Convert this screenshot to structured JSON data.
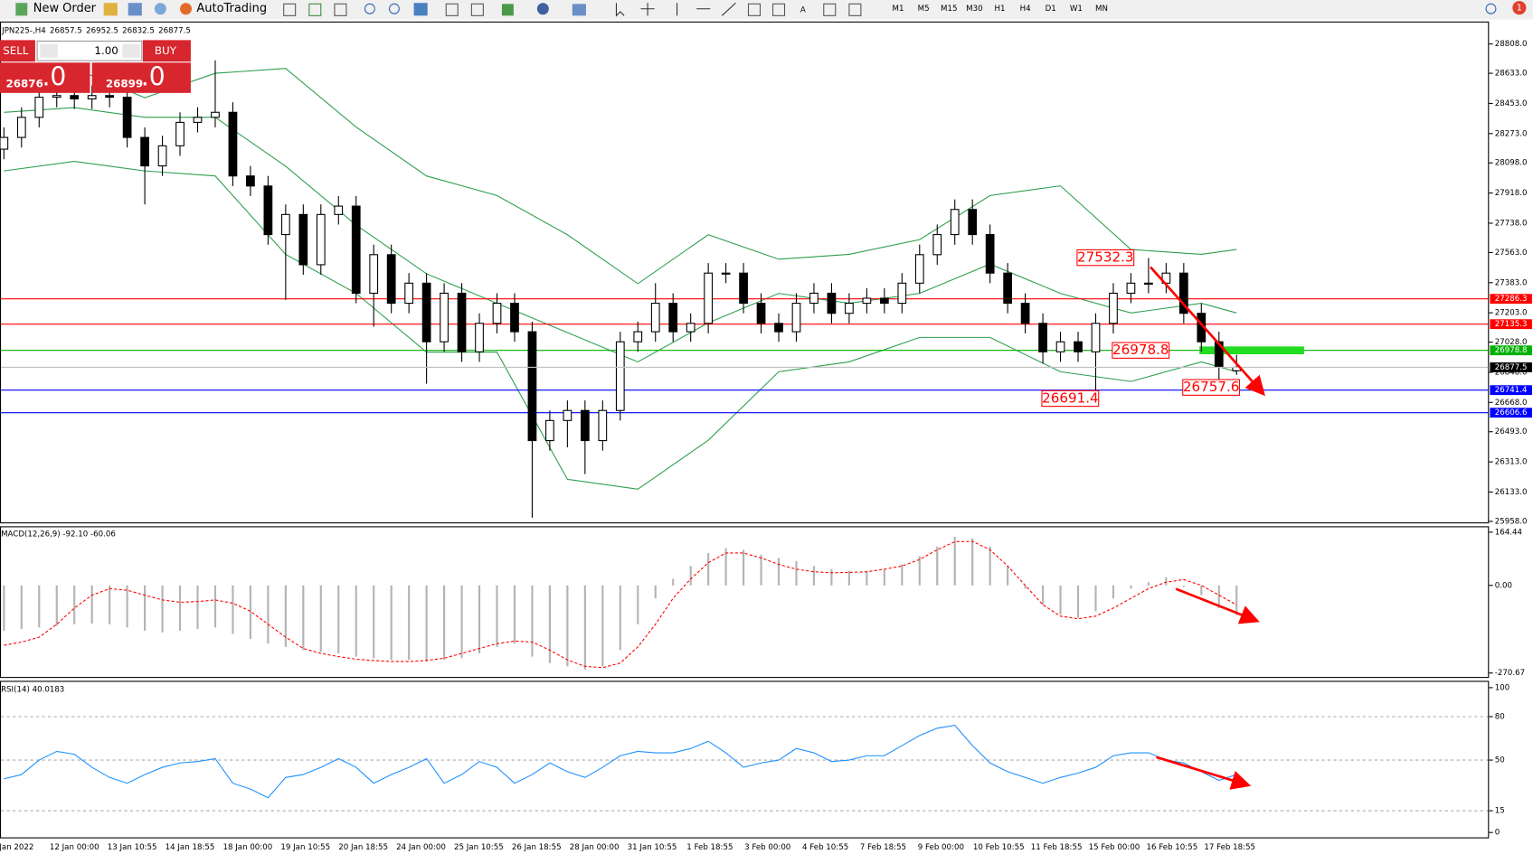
{
  "toolbar": {
    "new_order": "New Order",
    "autotrading": "AutoTrading",
    "timeframes": [
      "M1",
      "M5",
      "M15",
      "M30",
      "H1",
      "H4",
      "D1",
      "W1",
      "MN"
    ],
    "badge": "1"
  },
  "trade_panel": {
    "sell": "SELL",
    "buy": "BUY",
    "lots": "1.00",
    "sell_price": "26876",
    "sell_big": ".0",
    "buy_price": "26899",
    "buy_big": ".0"
  },
  "time_axis": [
    "Jan 2022",
    "12 Jan 00:00",
    "13 Jan 10:55",
    "14 Jan 18:55",
    "18 Jan 00:00",
    "19 Jan 10:55",
    "20 Jan 18:55",
    "24 Jan 00:00",
    "25 Jan 10:55",
    "26 Jan 18:55",
    "28 Jan 00:00",
    "31 Jan 10:55",
    "1 Feb 18:55",
    "3 Feb 00:00",
    "4 Feb 10:55",
    "7 Feb 18:55",
    "9 Feb 00:00",
    "10 Feb 10:55",
    "11 Feb 18:55",
    "15 Feb 00:00",
    "16 Feb 10:55",
    "17 Feb 18:55"
  ],
  "chart_data": [
    {
      "type": "candlestick",
      "symbol": "JPN225-,H4",
      "open": [
        28180,
        28250,
        28370,
        28490,
        28500,
        28480,
        28500,
        28490,
        28250,
        28080,
        28200,
        28340,
        28370,
        28400,
        28020,
        27960,
        27670,
        27790,
        27490,
        27790,
        27840,
        27320,
        27550,
        27260,
        27380,
        27030,
        27320,
        26970,
        27140,
        27260,
        27090,
        26440,
        26560,
        26620,
        26440,
        26620,
        27030,
        27090,
        27260,
        27090,
        27140,
        27440,
        27440,
        27260,
        27140,
        27090,
        27260,
        27320,
        27200,
        27260,
        27290,
        27260,
        27380,
        27550,
        27670,
        27820,
        27670,
        27440,
        27260,
        27140,
        26970,
        27030,
        26970,
        27140,
        27320,
        27380,
        27380,
        27440,
        27200,
        27030,
        26857.5
      ],
      "high": [
        28310,
        28430,
        28550,
        28560,
        28560,
        28560,
        28560,
        28550,
        28310,
        28260,
        28400,
        28430,
        28710,
        28460,
        28080,
        28020,
        27850,
        27850,
        27850,
        27900,
        27900,
        27610,
        27610,
        27440,
        27440,
        27380,
        27380,
        27200,
        27320,
        27320,
        27150,
        26620,
        26680,
        26680,
        26680,
        27090,
        27150,
        27380,
        27320,
        27200,
        27500,
        27500,
        27500,
        27320,
        27200,
        27320,
        27380,
        27380,
        27320,
        27350,
        27350,
        27440,
        27610,
        27730,
        27880,
        27880,
        27730,
        27500,
        27320,
        27200,
        27090,
        27090,
        27200,
        27380,
        27440,
        27530,
        27500,
        27500,
        27260,
        27090,
        26952.5
      ],
      "low": [
        28120,
        28190,
        28310,
        28430,
        28420,
        28420,
        28430,
        28190,
        27850,
        28020,
        28140,
        28280,
        28310,
        27960,
        27900,
        27610,
        27280,
        27430,
        27430,
        27730,
        27260,
        27120,
        27200,
        27200,
        26780,
        26970,
        26910,
        26910,
        27080,
        27030,
        25980,
        26380,
        26400,
        26240,
        26380,
        26560,
        26970,
        27030,
        27030,
        27030,
        27080,
        27380,
        27200,
        27080,
        27030,
        27030,
        27200,
        27140,
        27140,
        27200,
        27200,
        27200,
        27320,
        27490,
        27610,
        27610,
        27380,
        27200,
        27080,
        26900,
        26910,
        26910,
        26690,
        27080,
        27260,
        27320,
        27320,
        27140,
        26970,
        26760,
        26832.5
      ],
      "close": [
        28250,
        28370,
        28490,
        28500,
        28480,
        28500,
        28490,
        28250,
        28080,
        28200,
        28340,
        28370,
        28400,
        28020,
        27960,
        27670,
        27790,
        27490,
        27790,
        27840,
        27320,
        27550,
        27260,
        27380,
        27030,
        27320,
        26970,
        27140,
        27260,
        27090,
        26440,
        26560,
        26620,
        26440,
        26620,
        27030,
        27090,
        27260,
        27090,
        27140,
        27440,
        27440,
        27260,
        27140,
        27090,
        27260,
        27320,
        27200,
        27260,
        27290,
        27260,
        27380,
        27550,
        27670,
        27820,
        27670,
        27440,
        27260,
        27140,
        26970,
        27030,
        26970,
        27140,
        27320,
        27380,
        27380,
        27440,
        27200,
        27030,
        26880,
        26877.5
      ],
      "ylim": [
        25946,
        28942
      ],
      "yticks": [
        {
          "value": 28808,
          "label": "28808.0"
        },
        {
          "value": 28633,
          "label": "28633.0"
        },
        {
          "value": 28453,
          "label": "28453.0"
        },
        {
          "value": 28273,
          "label": "28273.0"
        },
        {
          "value": 28098,
          "label": "28098.0"
        },
        {
          "value": 27918,
          "label": "27918.0"
        },
        {
          "value": 27738,
          "label": "27738.0"
        },
        {
          "value": 27563,
          "label": "27563.0"
        },
        {
          "value": 27383,
          "label": "27383.0"
        },
        {
          "value": 27203,
          "label": "27203.0"
        },
        {
          "value": 27028,
          "label": "27028.0"
        },
        {
          "value": 26848,
          "label": "26848.0"
        },
        {
          "value": 26668,
          "label": "26668.0"
        },
        {
          "value": 26493,
          "label": "26493.0"
        },
        {
          "value": 26313,
          "label": "26313.0"
        },
        {
          "value": 26133,
          "label": "26133.0"
        },
        {
          "value": 25958,
          "label": "25958.0"
        }
      ],
      "bands": {
        "color": "#2e9e4f",
        "x": [
          0,
          4,
          8,
          12,
          16,
          20,
          24,
          28,
          32,
          36,
          40,
          44,
          48,
          52,
          56,
          60,
          64,
          68,
          70
        ],
        "upper": [
          28633,
          28662,
          28487,
          28633,
          28662,
          28312,
          28020,
          27903,
          27669,
          27377,
          27669,
          27523,
          27552,
          27640,
          27903,
          27961,
          27581,
          27552,
          27581
        ],
        "middle": [
          28400,
          28428,
          28370,
          28370,
          28078,
          27727,
          27436,
          27260,
          27085,
          26910,
          27143,
          27319,
          27260,
          27319,
          27494,
          27319,
          27202,
          27260,
          27202
        ],
        "lower": [
          28050,
          28107,
          28050,
          28020,
          27552,
          27319,
          26968,
          26968,
          26209,
          26150,
          26442,
          26851,
          26910,
          27056,
          27056,
          26851,
          26793,
          26910,
          26851
        ]
      },
      "levels": [
        {
          "value": 27286.3,
          "color": "#ff0000"
        },
        {
          "value": 27135.3,
          "color": "#ff0000"
        },
        {
          "value": 26978.8,
          "color": "#00b000"
        },
        {
          "value": 26741.4,
          "color": "#0000ff"
        },
        {
          "value": 26606.6,
          "color": "#0000ff"
        }
      ],
      "annotations": [
        {
          "x": 61,
          "value": 27532.3
        },
        {
          "x": 63,
          "value": 26978.8
        },
        {
          "x": 59,
          "value": 26691.4
        },
        {
          "x": 67,
          "value": 26757.6
        }
      ]
    },
    {
      "type": "macd",
      "title": "MACD(12,26,9) -92.10 -60.06",
      "histogram": [
        -140,
        -135,
        -130,
        -125,
        -120,
        -118,
        -120,
        -130,
        -140,
        -145,
        -140,
        -135,
        -130,
        -150,
        -165,
        -180,
        -190,
        -200,
        -205,
        -210,
        -220,
        -225,
        -230,
        -230,
        -235,
        -230,
        -225,
        -210,
        -190,
        -180,
        -220,
        -240,
        -250,
        -260,
        -250,
        -200,
        -120,
        -40,
        20,
        60,
        100,
        115,
        110,
        95,
        85,
        75,
        60,
        50,
        45,
        45,
        50,
        65,
        90,
        120,
        150,
        145,
        120,
        60,
        -10,
        -60,
        -90,
        -100,
        -80,
        -40,
        -10,
        10,
        25,
        -5,
        -30,
        -70,
        -92.1
      ],
      "signal": [
        -185,
        -175,
        -160,
        -120,
        -70,
        -30,
        -10,
        -15,
        -30,
        -45,
        -52,
        -50,
        -45,
        -55,
        -80,
        -120,
        -160,
        -195,
        -210,
        -220,
        -228,
        -232,
        -235,
        -235,
        -232,
        -225,
        -210,
        -195,
        -180,
        -172,
        -175,
        -200,
        -230,
        -250,
        -254,
        -240,
        -190,
        -120,
        -40,
        20,
        70,
        100,
        100,
        85,
        65,
        50,
        42,
        39,
        40,
        42,
        50,
        60,
        80,
        110,
        135,
        136,
        110,
        60,
        0,
        -60,
        -95,
        -103,
        -95,
        -70,
        -40,
        -10,
        10,
        18,
        0,
        -30,
        -60.06
      ],
      "histogram_color": "#b4b4b4",
      "signal_color": "#ff0000",
      "ylim": [
        -285.8,
        182.6
      ],
      "yticks": [
        164.44,
        {
          "value": 0,
          "label": "0.00"
        },
        -270.67
      ]
    },
    {
      "type": "line",
      "title": "RSI(14) 40.0183",
      "color": "#1e90ff",
      "values": [
        37,
        40,
        50,
        56,
        54,
        45,
        38,
        34,
        40,
        45,
        48,
        49,
        51,
        34,
        30,
        24,
        38,
        40,
        45,
        51,
        45,
        34,
        40,
        45,
        51,
        34,
        40,
        49,
        45,
        34,
        40,
        48,
        42,
        38,
        45,
        53,
        56,
        55,
        55,
        58,
        63,
        55,
        45,
        48,
        50,
        58,
        55,
        49,
        50,
        53,
        53,
        60,
        67,
        72,
        74,
        60,
        48,
        42,
        38,
        34,
        38,
        41,
        45,
        53,
        55,
        55,
        50,
        48,
        42,
        36,
        40.0183
      ],
      "ylim": [
        -4.05,
        104.7
      ],
      "yticks": [
        0,
        15,
        50,
        80,
        100
      ]
    }
  ]
}
